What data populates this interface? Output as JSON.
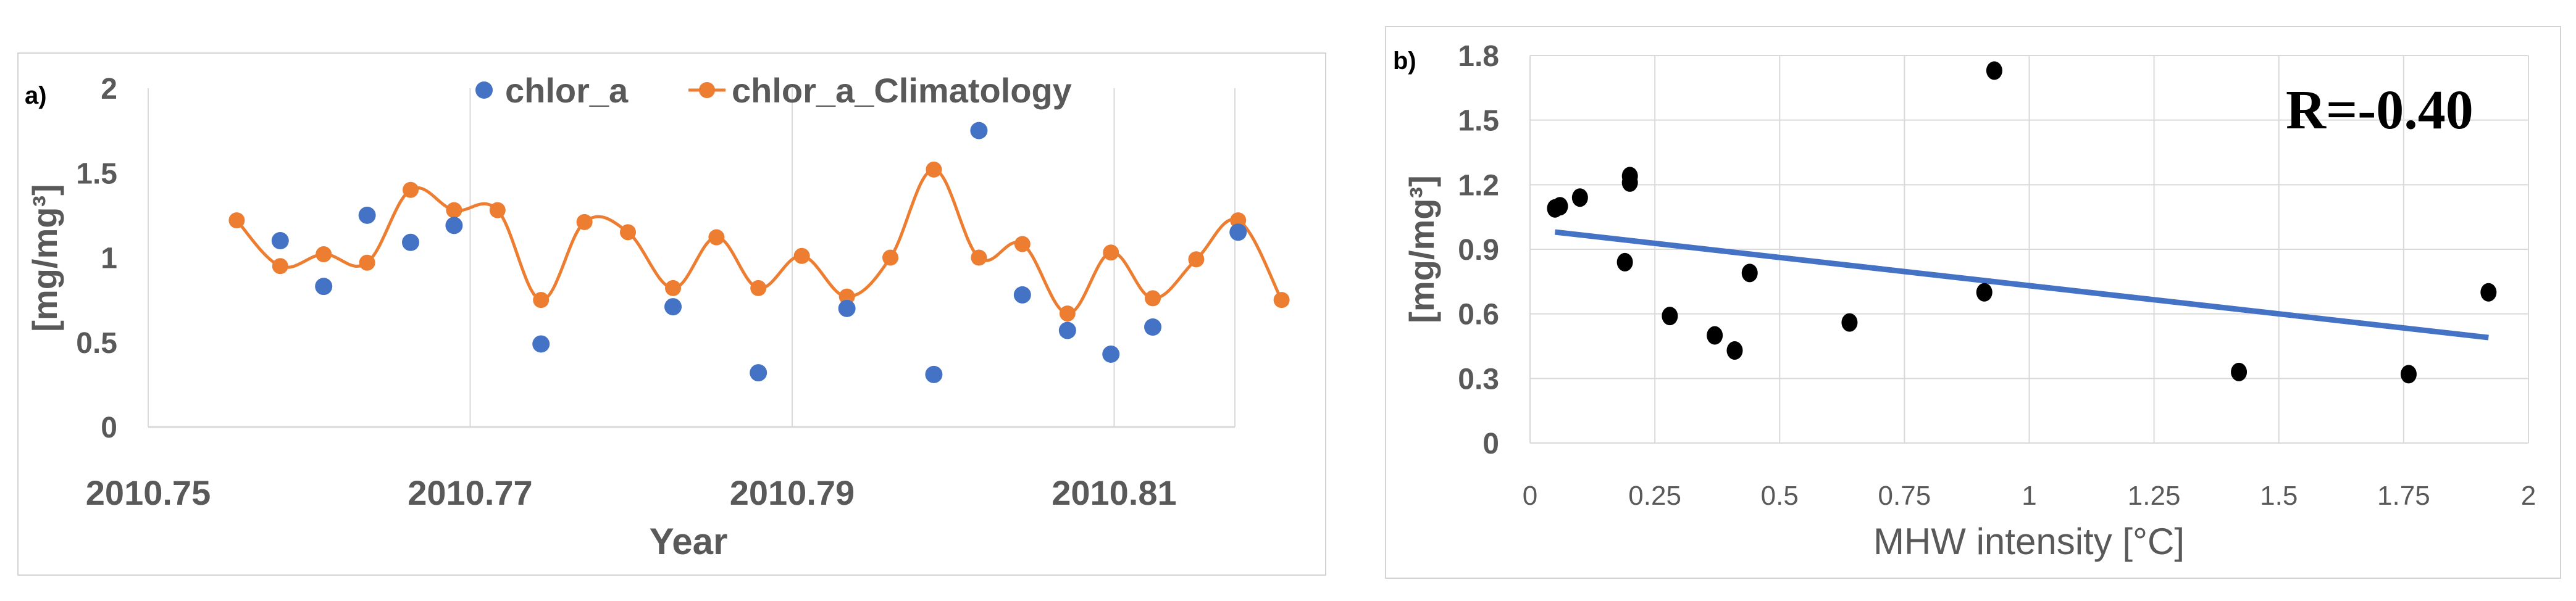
{
  "chart_data": [
    {
      "panel_label": "a)",
      "type": "line",
      "xlabel": "Year",
      "ylabel": "[mg/mg³]",
      "ylim": [
        0,
        2
      ],
      "y_ticks": [
        "0",
        "0.5",
        "1",
        "1.5",
        "2"
      ],
      "xlim": [
        2010.75,
        2010.8175
      ],
      "x_ticks": [
        {
          "value": 2010.75,
          "label": "2010.75"
        },
        {
          "value": 2010.77,
          "label": "2010.77"
        },
        {
          "value": 2010.79,
          "label": "2010.79"
        },
        {
          "value": 2010.81,
          "label": "2010.81"
        }
      ],
      "grid": "vertical",
      "legend_position": "top",
      "colors": {
        "chlor_a": "#4472C4",
        "climatology": "#ED7D31",
        "grid": "#d9d9d9",
        "axis_text": "#595959"
      },
      "series": [
        {
          "name": "chlor_a",
          "style": "markers",
          "x": [
            2010.7582,
            2010.7609,
            2010.7636,
            2010.7663,
            2010.769,
            2010.7744,
            2010.7826,
            2010.7879,
            2010.7934,
            2010.7988,
            2010.8016,
            2010.8043,
            2010.8071,
            2010.8098,
            2010.8124,
            2010.8177
          ],
          "values": [
            1.1,
            0.83,
            1.25,
            1.09,
            1.19,
            0.49,
            0.71,
            0.32,
            0.7,
            0.31,
            1.75,
            0.78,
            0.57,
            0.43,
            0.59,
            1.15
          ]
        },
        {
          "name": "chlor_a_Climatology",
          "style": "smooth-line-markers",
          "x": [
            2010.7555,
            2010.7582,
            2010.7609,
            2010.7636,
            2010.7663,
            2010.769,
            2010.7717,
            2010.7744,
            2010.7771,
            2010.7798,
            2010.7826,
            2010.7853,
            2010.7879,
            2010.7906,
            2010.7934,
            2010.7961,
            2010.7988,
            2010.8016,
            2010.8043,
            2010.8071,
            2010.8098,
            2010.8124,
            2010.8151,
            2010.8177,
            2010.8204
          ],
          "values": [
            1.22,
            0.95,
            1.02,
            0.97,
            1.4,
            1.28,
            1.28,
            0.75,
            1.21,
            1.15,
            0.82,
            1.12,
            0.82,
            1.01,
            0.77,
            1.0,
            1.52,
            1.0,
            1.08,
            0.67,
            1.03,
            0.76,
            0.99,
            1.22,
            0.75
          ]
        }
      ]
    },
    {
      "panel_label": "b)",
      "type": "scatter",
      "xlabel": "MHW intensity [°C]",
      "ylabel": "[mg/mg³]",
      "xlim": [
        0,
        2
      ],
      "ylim": [
        0,
        1.8
      ],
      "x_ticks": [
        "0",
        "0.25",
        "0.5",
        "0.75",
        "1",
        "1.25",
        "1.5",
        "1.75",
        "2"
      ],
      "y_ticks": [
        "0",
        "0.3",
        "0.6",
        "0.9",
        "1.2",
        "1.5",
        "1.8"
      ],
      "grid": "both",
      "annotation": "R=-0.40",
      "colors": {
        "points": "#000000",
        "trendline": "#4472C4",
        "grid": "#d9d9d9",
        "axis_text": "#595959"
      },
      "x": [
        0.05,
        0.06,
        0.1,
        0.19,
        0.2,
        0.2,
        0.28,
        0.37,
        0.41,
        0.44,
        0.64,
        0.91,
        0.93,
        1.42,
        1.76,
        1.92
      ],
      "y": [
        1.09,
        1.1,
        1.14,
        0.84,
        1.21,
        1.24,
        0.59,
        0.5,
        0.43,
        0.79,
        0.56,
        0.7,
        1.73,
        0.33,
        0.32,
        0.7
      ],
      "trendline": {
        "x": [
          0.05,
          1.92
        ],
        "y": [
          0.98,
          0.49
        ]
      }
    }
  ]
}
